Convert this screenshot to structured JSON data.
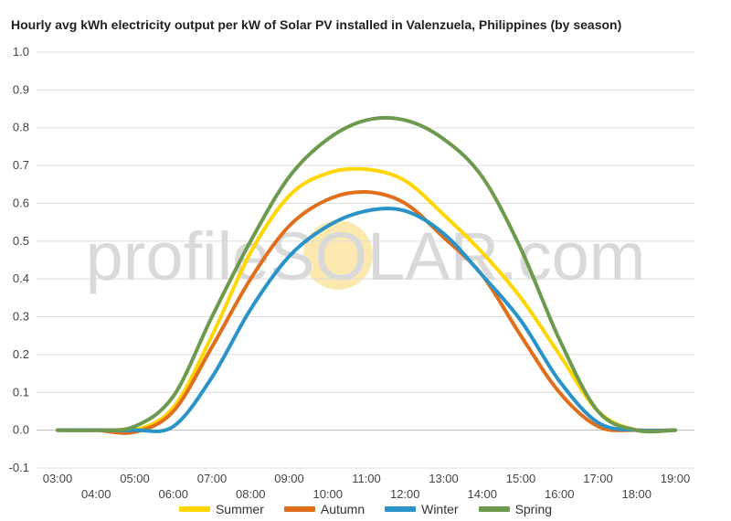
{
  "colors": {
    "grid": "#dcdcdc",
    "zero_line": "#bbbbbb",
    "watermark_sun": "#fce9b0",
    "watermark_text": "#d9d9d9"
  },
  "watermark": "profileSOLAR.com",
  "chart_data": {
    "type": "line",
    "title": "Hourly avg kWh electricity output per kW of Solar PV installed in Valenzuela, Philippines (by season)",
    "xlabel": "",
    "ylabel": "",
    "ylim": [
      -0.1,
      1.0
    ],
    "y_ticks": [
      "-0.1",
      "0.0",
      "0.1",
      "0.2",
      "0.3",
      "0.4",
      "0.5",
      "0.6",
      "0.7",
      "0.8",
      "0.9",
      "1.0"
    ],
    "y_tick_values": [
      -0.1,
      0.0,
      0.1,
      0.2,
      0.3,
      0.4,
      0.5,
      0.6,
      0.7,
      0.8,
      0.9,
      1.0
    ],
    "x_ticks": [
      "03:00",
      "04:00",
      "05:00",
      "06:00",
      "07:00",
      "08:00",
      "09:00",
      "10:00",
      "11:00",
      "12:00",
      "13:00",
      "14:00",
      "15:00",
      "16:00",
      "17:00",
      "18:00",
      "19:00"
    ],
    "grid": true,
    "legend_position": "bottom",
    "series": [
      {
        "name": "Summer",
        "color": "#ffd600",
        "values": [
          0.0,
          0.0,
          0.0,
          0.06,
          0.25,
          0.47,
          0.62,
          0.68,
          0.69,
          0.66,
          0.57,
          0.47,
          0.35,
          0.2,
          0.05,
          0.0,
          0.0
        ]
      },
      {
        "name": "Autumn",
        "color": "#e06e1b",
        "values": [
          0.0,
          0.0,
          -0.005,
          0.05,
          0.22,
          0.4,
          0.54,
          0.61,
          0.63,
          0.6,
          0.51,
          0.41,
          0.25,
          0.1,
          0.01,
          0.0,
          0.0
        ]
      },
      {
        "name": "Winter",
        "color": "#2a93c8",
        "values": [
          0.0,
          0.0,
          0.0,
          0.01,
          0.14,
          0.32,
          0.46,
          0.54,
          0.58,
          0.58,
          0.52,
          0.41,
          0.29,
          0.13,
          0.02,
          0.0,
          0.0
        ]
      },
      {
        "name": "Spring",
        "color": "#6d9a4e",
        "values": [
          0.0,
          0.0,
          0.01,
          0.09,
          0.3,
          0.5,
          0.67,
          0.77,
          0.82,
          0.82,
          0.77,
          0.67,
          0.48,
          0.24,
          0.05,
          0.0,
          0.0
        ]
      }
    ]
  }
}
